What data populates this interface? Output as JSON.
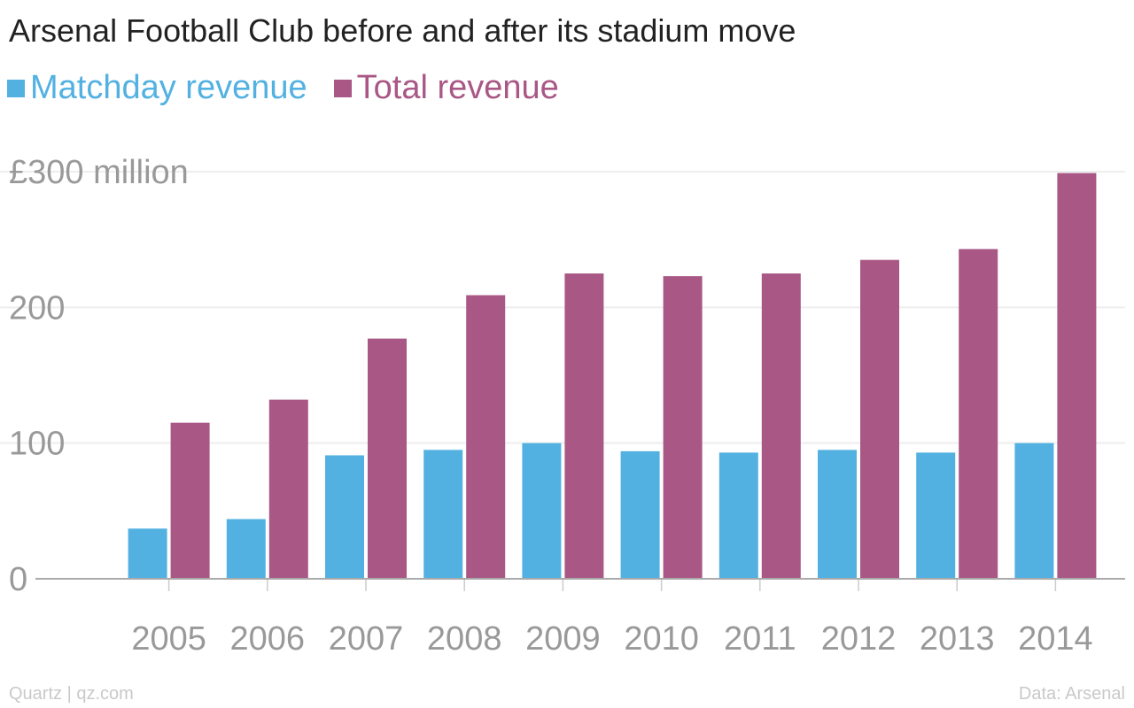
{
  "chart_data": {
    "type": "bar",
    "title": "Arsenal Football Club before and after its stadium move",
    "categories": [
      "2005",
      "2006",
      "2007",
      "2008",
      "2009",
      "2010",
      "2011",
      "2012",
      "2013",
      "2014"
    ],
    "series": [
      {
        "name": "Matchday revenue",
        "color": "#53b1e2",
        "values": [
          37,
          44,
          91,
          95,
          100,
          94,
          93,
          95,
          93,
          100
        ]
      },
      {
        "name": "Total revenue",
        "color": "#a95785",
        "values": [
          115,
          132,
          177,
          209,
          225,
          223,
          225,
          235,
          243,
          299
        ]
      }
    ],
    "y_ticks": [
      {
        "value": 0,
        "label": "0"
      },
      {
        "value": 100,
        "label": "100"
      },
      {
        "value": 200,
        "label": "200"
      },
      {
        "value": 300,
        "label": "£300 million"
      }
    ],
    "ylim": [
      0,
      300
    ],
    "grid": true,
    "legend_position": "top-left"
  },
  "footer": {
    "source_left": "Quartz | qz.com",
    "source_right": "Data: Arsenal"
  }
}
